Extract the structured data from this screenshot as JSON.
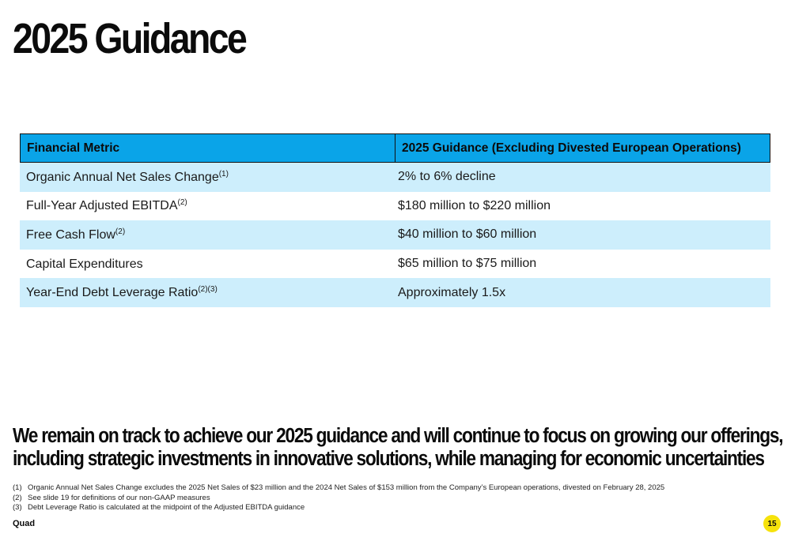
{
  "title": "2025 Guidance",
  "table": {
    "headers": [
      "Financial Metric",
      "2025 Guidance (Excluding Divested European Operations)"
    ],
    "rows": [
      {
        "metric": "Organic Annual Net Sales Change",
        "note": "(1)",
        "value": "2% to 6% decline"
      },
      {
        "metric": "Full-Year Adjusted EBITDA",
        "note": "(2)",
        "value": "$180 million to $220 million"
      },
      {
        "metric": "Free Cash Flow",
        "note": "(2)",
        "value": "$40 million to $60 million"
      },
      {
        "metric": "Capital Expenditures",
        "note": "",
        "value": "$65 million to $75 million"
      },
      {
        "metric": "Year-End Debt Leverage Ratio",
        "note": "(2)(3)",
        "value": "Approximately 1.5x"
      }
    ]
  },
  "message": [
    "We remain on track to achieve our 2025 guidance and will continue to focus on growing our offerings,",
    "including strategic investments in innovative solutions, while managing for economic uncertainties"
  ],
  "footnotes": [
    {
      "num": "(1)",
      "text": "Organic Annual Net Sales Change excludes the 2025 Net Sales of $23 million and the 2024 Net Sales of $153 million from the Company’s European operations, divested on February 28, 2025"
    },
    {
      "num": "(2)",
      "text": "See slide 19 for definitions of our non-GAAP measures"
    },
    {
      "num": "(3)",
      "text": "Debt Leverage Ratio is calculated at the midpoint of the Adjusted EBITDA guidance"
    }
  ],
  "brand": "Quad",
  "page_number": "15",
  "colors": {
    "header_blue": "#0aa4e8",
    "row_light_blue": "#cdeefc",
    "page_badge_yellow": "#f6e20c"
  }
}
